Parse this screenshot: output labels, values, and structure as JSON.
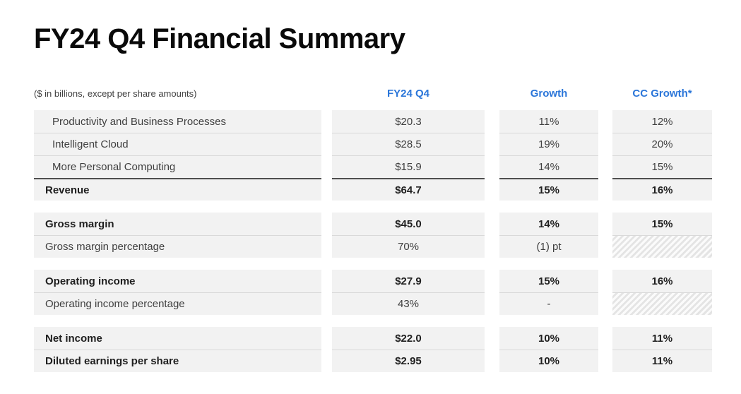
{
  "slide": {
    "title": "FY24 Q4 Financial Summary",
    "units_note": "($ in billions, except per share amounts)"
  },
  "colors": {
    "accent_blue": "#2B76D9",
    "cell_background": "#F2F2F2",
    "row_separator": "#D9D9D9",
    "total_line": "#4F4F4F"
  },
  "table": {
    "column_headers": [
      "FY24 Q4",
      "Growth",
      "CC Growth*"
    ],
    "blocks": [
      {
        "rows": [
          {
            "label": "Productivity and Business Processes",
            "fy24_q4": "$20.3",
            "growth": "11%",
            "cc_growth": "12%"
          },
          {
            "label": "Intelligent Cloud",
            "fy24_q4": "$28.5",
            "growth": "19%",
            "cc_growth": "20%"
          },
          {
            "label": "More Personal Computing",
            "fy24_q4": "$15.9",
            "growth": "14%",
            "cc_growth": "15%"
          },
          {
            "label": "Revenue",
            "fy24_q4": "$64.7",
            "growth": "15%",
            "cc_growth": "16%"
          }
        ]
      },
      {
        "rows": [
          {
            "label": "Gross margin",
            "fy24_q4": "$45.0",
            "growth": "14%",
            "cc_growth": "15%"
          },
          {
            "label": "Gross margin percentage",
            "fy24_q4": "70%",
            "growth": "(1) pt",
            "cc_growth": ""
          }
        ]
      },
      {
        "rows": [
          {
            "label": "Operating income",
            "fy24_q4": "$27.9",
            "growth": "15%",
            "cc_growth": "16%"
          },
          {
            "label": "Operating income percentage",
            "fy24_q4": "43%",
            "growth": "-",
            "cc_growth": ""
          }
        ]
      },
      {
        "rows": [
          {
            "label": "Net income",
            "fy24_q4": "$22.0",
            "growth": "10%",
            "cc_growth": "11%"
          },
          {
            "label": "Diluted earnings per share",
            "fy24_q4": "$2.95",
            "growth": "10%",
            "cc_growth": "11%"
          }
        ]
      }
    ]
  }
}
